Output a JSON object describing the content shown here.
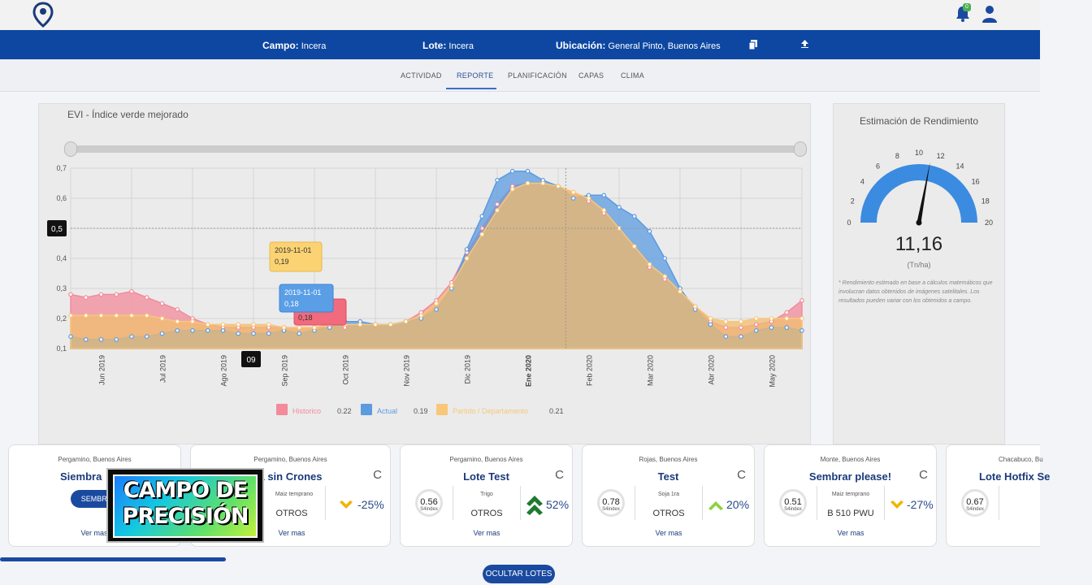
{
  "header": {
    "campo_label": "Campo:",
    "campo_value": "Incera",
    "lote_label": "Lote:",
    "lote_value": "Incera",
    "ubicacion_label": "Ubicación:",
    "ubicacion_value": "General Pinto, Buenos Aires",
    "notifications_count": "0"
  },
  "tabs": [
    {
      "label": "ACTIVIDAD"
    },
    {
      "label": "REPORTE",
      "active": true
    },
    {
      "label": "PLANIFICACIÓN"
    },
    {
      "label": "CAPAS"
    },
    {
      "label": "CLIMA"
    }
  ],
  "chart": {
    "title": "EVI - Índice verde mejorado",
    "crosshair_y_label": "0,5",
    "crosshair_x_label": "09",
    "tooltips": [
      {
        "date": "2019-11-01",
        "value": "0,19"
      },
      {
        "date": "2019-11-01",
        "value": "0,18"
      },
      {
        "value": "0,18"
      }
    ],
    "legend": [
      {
        "name": "Historico",
        "value": "0.22",
        "color": "#f28b9b"
      },
      {
        "name": "Actual",
        "value": "0.19",
        "color": "#5b9be0"
      },
      {
        "name": "Partido / Departamento",
        "value": "0.21",
        "color": "#f8c77a"
      }
    ]
  },
  "chart_data": {
    "type": "area",
    "title": "EVI - Índice verde mejorado",
    "x_labels": [
      "Jun 2019",
      "Jul 2019",
      "Ago 2019",
      "Sep 2019",
      "Oct 2019",
      "Nov 2019",
      "Dic 2019",
      "Ene 2020",
      "Feb 2020",
      "Mar 2020",
      "Abr 2020",
      "May 2020"
    ],
    "ylim": [
      0.1,
      0.7
    ],
    "y_ticks": [
      "0,7",
      "0,6",
      "0,5",
      "0,4",
      "0,3",
      "0,2",
      "0,1"
    ],
    "grid": true,
    "legend_position": "bottom",
    "x": [
      0,
      0.5,
      1,
      1.5,
      2,
      2.5,
      3,
      3.5,
      4,
      4.5,
      5,
      5.5,
      6,
      6.5,
      7,
      7.5,
      8,
      8.5,
      9,
      9.5,
      10,
      10.5,
      11,
      11.5,
      12,
      12.5,
      13,
      13.5,
      14,
      14.5,
      15,
      15.5,
      16,
      16.5,
      17,
      17.5,
      18,
      18.5,
      19,
      19.5,
      20,
      20.5,
      21,
      21.5,
      22,
      22.5,
      23,
      23.5,
      24
    ],
    "series": [
      {
        "name": "Historico",
        "values": [
          0.28,
          0.27,
          0.28,
          0.28,
          0.29,
          0.27,
          0.25,
          0.23,
          0.2,
          0.18,
          0.17,
          0.17,
          0.17,
          0.17,
          0.17,
          0.17,
          0.17,
          0.17,
          0.17,
          0.18,
          0.18,
          0.18,
          0.19,
          0.22,
          0.26,
          0.32,
          0.42,
          0.5,
          0.58,
          0.64,
          0.65,
          0.65,
          0.64,
          0.62,
          0.59,
          0.55,
          0.5,
          0.44,
          0.37,
          0.33,
          0.29,
          0.24,
          0.19,
          0.17,
          0.17,
          0.18,
          0.19,
          0.22,
          0.26
        ]
      },
      {
        "name": "Actual",
        "values": [
          0.14,
          0.13,
          0.13,
          0.13,
          0.14,
          0.14,
          0.15,
          0.16,
          0.16,
          0.16,
          0.16,
          0.15,
          0.15,
          0.15,
          0.16,
          0.15,
          0.16,
          0.17,
          0.19,
          0.19,
          0.18,
          0.18,
          0.19,
          0.2,
          0.23,
          0.3,
          0.43,
          0.54,
          0.66,
          0.69,
          0.69,
          0.66,
          0.64,
          0.6,
          0.61,
          0.61,
          0.57,
          0.54,
          0.49,
          0.4,
          0.3,
          0.23,
          0.18,
          0.14,
          0.14,
          0.16,
          0.17,
          0.17,
          0.16
        ]
      },
      {
        "name": "Partido / Departamento",
        "values": [
          0.21,
          0.21,
          0.21,
          0.21,
          0.21,
          0.21,
          0.2,
          0.19,
          0.19,
          0.18,
          0.18,
          0.18,
          0.18,
          0.18,
          0.17,
          0.17,
          0.17,
          0.18,
          0.18,
          0.18,
          0.18,
          0.18,
          0.19,
          0.21,
          0.25,
          0.31,
          0.4,
          0.48,
          0.56,
          0.63,
          0.65,
          0.65,
          0.64,
          0.62,
          0.6,
          0.56,
          0.5,
          0.44,
          0.38,
          0.34,
          0.29,
          0.24,
          0.2,
          0.19,
          0.19,
          0.2,
          0.2,
          0.2,
          0.2
        ]
      }
    ]
  },
  "gauge": {
    "title": "Estimación de Rendimiento",
    "value": 11.16,
    "value_text": "11,16",
    "unit": "(Tn/ha)",
    "max": 20,
    "tick_labels": [
      "0",
      "2",
      "4",
      "6",
      "8",
      "10",
      "12",
      "14",
      "16",
      "18",
      "20"
    ],
    "note": "* Rendimiento estimado en base a cálculos matemáticos que involucran datos obtenidos de imágenes satelitales. Los resultados pueden variar con los obtenidos a campo."
  },
  "cards": [
    {
      "location": "Pergamino, Buenos Aires",
      "name": "Siembra",
      "button": "SEMBRAR",
      "ver_mas": "Ver mas"
    },
    {
      "location": "Pergamino, Buenos Aires",
      "name": "a sin Crones",
      "crop": "Maiz temprano",
      "variety": "OTROS",
      "pct": "-25%",
      "trend": "down",
      "ver_mas": "Ver mas"
    },
    {
      "location": "Pergamino, Buenos Aires",
      "name": "Lote Test",
      "index": "0.56",
      "index_label": "S4index",
      "crop": "Trigo",
      "variety": "OTROS",
      "pct": "52%",
      "trend": "up-strong",
      "ver_mas": "Ver mas"
    },
    {
      "location": "Rojas, Buenos Aires",
      "name": "Test",
      "index": "0.78",
      "index_label": "S4index",
      "crop": "Soja 1ra",
      "variety": "OTROS",
      "pct": "20%",
      "trend": "up",
      "ver_mas": "Ver mas"
    },
    {
      "location": "Monte, Buenos Aires",
      "name": "Sembrar please!",
      "index": "0.51",
      "index_label": "S4index",
      "crop": "Maiz temprano",
      "variety": "B 510 PWU",
      "pct": "-27%",
      "trend": "down",
      "ver_mas": "Ver mas"
    },
    {
      "location": "Chacabuco, Bu",
      "name": "Lote Hotfix Se",
      "index": "0.67",
      "index_label": "S4index"
    }
  ],
  "overlay": {
    "line1": "CAMPO DE",
    "line2": "PRECISIÓN"
  },
  "footer": {
    "ocultar_label": "OCULTAR LOTES"
  }
}
